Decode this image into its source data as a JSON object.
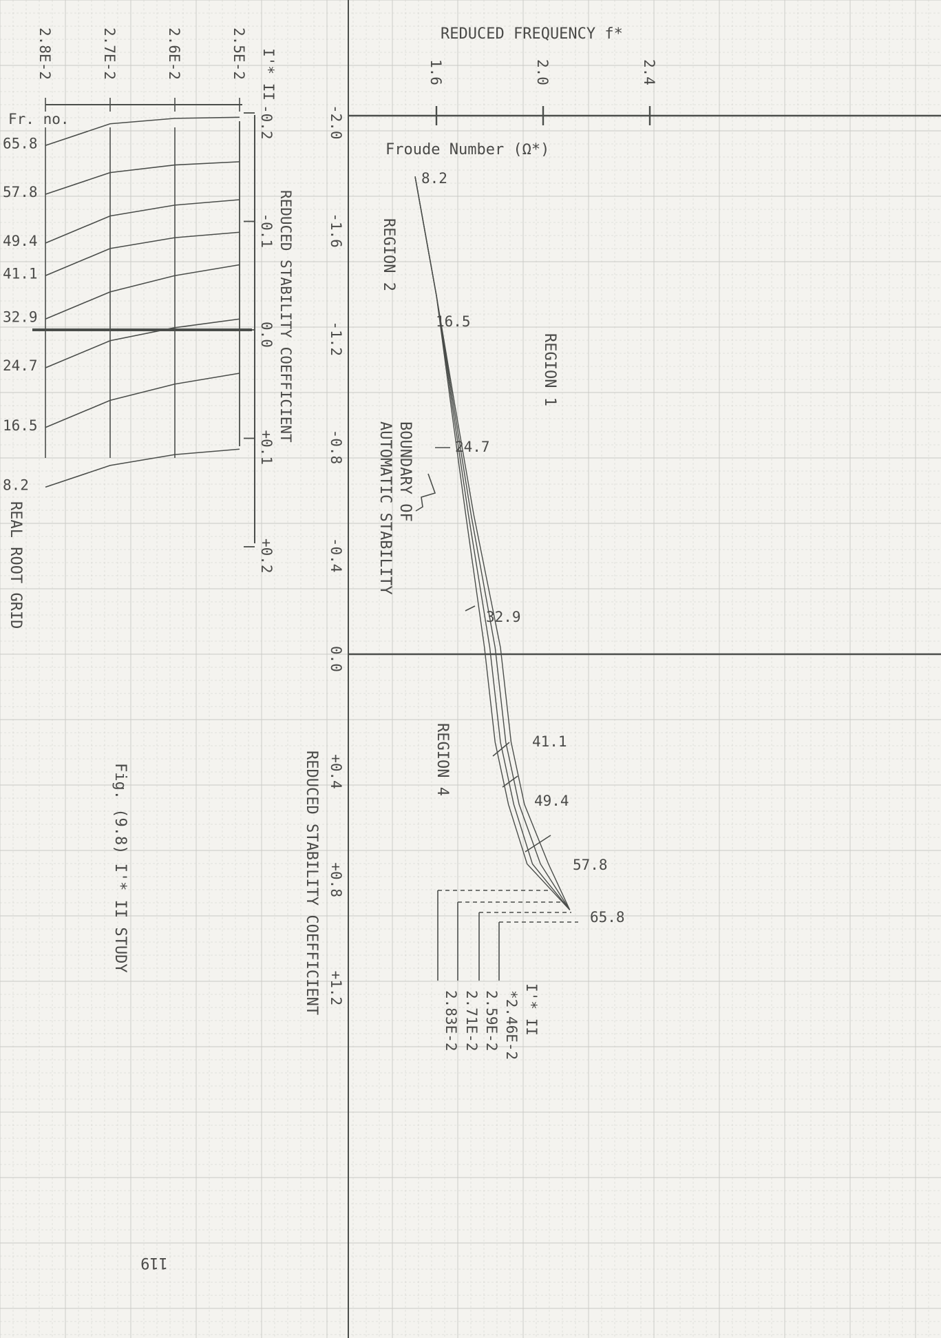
{
  "chart_data": [
    {
      "type": "line",
      "title": "REAL ROOT GRID",
      "x_axis": {
        "label": "I'* II",
        "ticks": [
          "2.8E-2",
          "2.7E-2",
          "2.6E-2",
          "2.5E-2"
        ],
        "values": [
          0.028,
          0.027,
          0.026,
          0.025
        ]
      },
      "y_axis": {
        "label": "REDUCED STABILITY COEFFICIENT",
        "ticks": [
          "-0.2",
          "-0.1",
          "0.0",
          "+0.1",
          "+0.2"
        ],
        "values": [
          -0.2,
          -0.1,
          0.0,
          0.1,
          0.2
        ]
      },
      "legend_title": "Fr. no.",
      "series": [
        {
          "name": "65.8",
          "values": [
            -0.17,
            -0.19,
            -0.195,
            -0.196
          ]
        },
        {
          "name": "57.8",
          "values": [
            -0.125,
            -0.145,
            -0.152,
            -0.155
          ]
        },
        {
          "name": "49.4",
          "values": [
            -0.08,
            -0.105,
            -0.115,
            -0.12
          ]
        },
        {
          "name": "41.1",
          "values": [
            -0.05,
            -0.075,
            -0.085,
            -0.09
          ]
        },
        {
          "name": "32.9",
          "values": [
            -0.01,
            -0.035,
            -0.05,
            -0.06
          ]
        },
        {
          "name": "24.7",
          "values": [
            0.035,
            0.01,
            -0.002,
            -0.01
          ]
        },
        {
          "name": "16.5",
          "values": [
            0.09,
            0.065,
            0.05,
            0.04
          ]
        },
        {
          "name": "8.2",
          "values": [
            0.145,
            0.125,
            0.115,
            0.11
          ]
        }
      ],
      "grid": true
    },
    {
      "type": "line",
      "title": "",
      "x_axis": {
        "label": "REDUCED FREQUENCY f*",
        "ticks": [
          "1.6",
          "2.0",
          "2.4"
        ],
        "values": [
          1.6,
          2.0,
          2.4
        ],
        "range": [
          1.27,
          2.66
        ]
      },
      "y_axis": {
        "label": "REDUCED STABILITY COEFFICIENT",
        "ticks": [
          "-2.0",
          "-1.6",
          "-1.2",
          "-0.8",
          "-0.4",
          "0.0",
          "+0.4",
          "+0.8",
          "+1.2"
        ],
        "values": [
          -2.0,
          -1.6,
          -1.2,
          -0.8,
          -0.4,
          0.0,
          0.4,
          0.8,
          1.2
        ]
      },
      "curve_label": "Froude Number (Ω*)",
      "froude_numbers": [
        "8.2",
        "16.5",
        "24.7",
        "32.9",
        "41.1",
        "49.4",
        "57.8",
        "65.8"
      ],
      "legend_title": "I'* II",
      "series": [
        {
          "name": "*2.46E-2",
          "x": [
            1.52,
            1.6,
            1.67,
            1.74,
            1.84,
            1.88,
            1.93,
            2.02,
            2.1
          ],
          "y": [
            -1.77,
            -1.33,
            -0.92,
            -0.52,
            -0.03,
            0.32,
            0.55,
            0.77,
            0.94
          ]
        },
        {
          "name": "2.59E-2",
          "x": [
            1.52,
            1.6,
            1.665,
            1.73,
            1.82,
            1.86,
            1.91,
            1.99,
            2.1
          ],
          "y": [
            -1.77,
            -1.33,
            -0.92,
            -0.52,
            -0.03,
            0.32,
            0.55,
            0.77,
            0.94
          ]
        },
        {
          "name": "2.71E-2",
          "x": [
            1.52,
            1.6,
            1.66,
            1.72,
            1.8,
            1.84,
            1.89,
            1.96,
            2.1
          ],
          "y": [
            -1.77,
            -1.33,
            -0.92,
            -0.52,
            -0.03,
            0.32,
            0.55,
            0.77,
            0.94
          ]
        },
        {
          "name": "2.83E-2",
          "x": [
            1.52,
            1.6,
            1.655,
            1.71,
            1.78,
            1.82,
            1.87,
            1.94,
            2.1
          ],
          "y": [
            -1.77,
            -1.33,
            -0.92,
            -0.52,
            -0.03,
            0.32,
            0.55,
            0.77,
            0.94
          ]
        }
      ],
      "annotations": [
        "REGION 1",
        "REGION 2",
        "REGION 4",
        "BOUNDARY OF AUTOMATIC STABILITY"
      ],
      "grid": true
    }
  ],
  "page": {
    "figure_caption": "Fig. (9.8) I'* II STUDY",
    "page_number": "119"
  },
  "colors": {
    "paper": "#f4f3ef",
    "grid": "#c9c9c4",
    "ink": "#4a4d4a"
  }
}
